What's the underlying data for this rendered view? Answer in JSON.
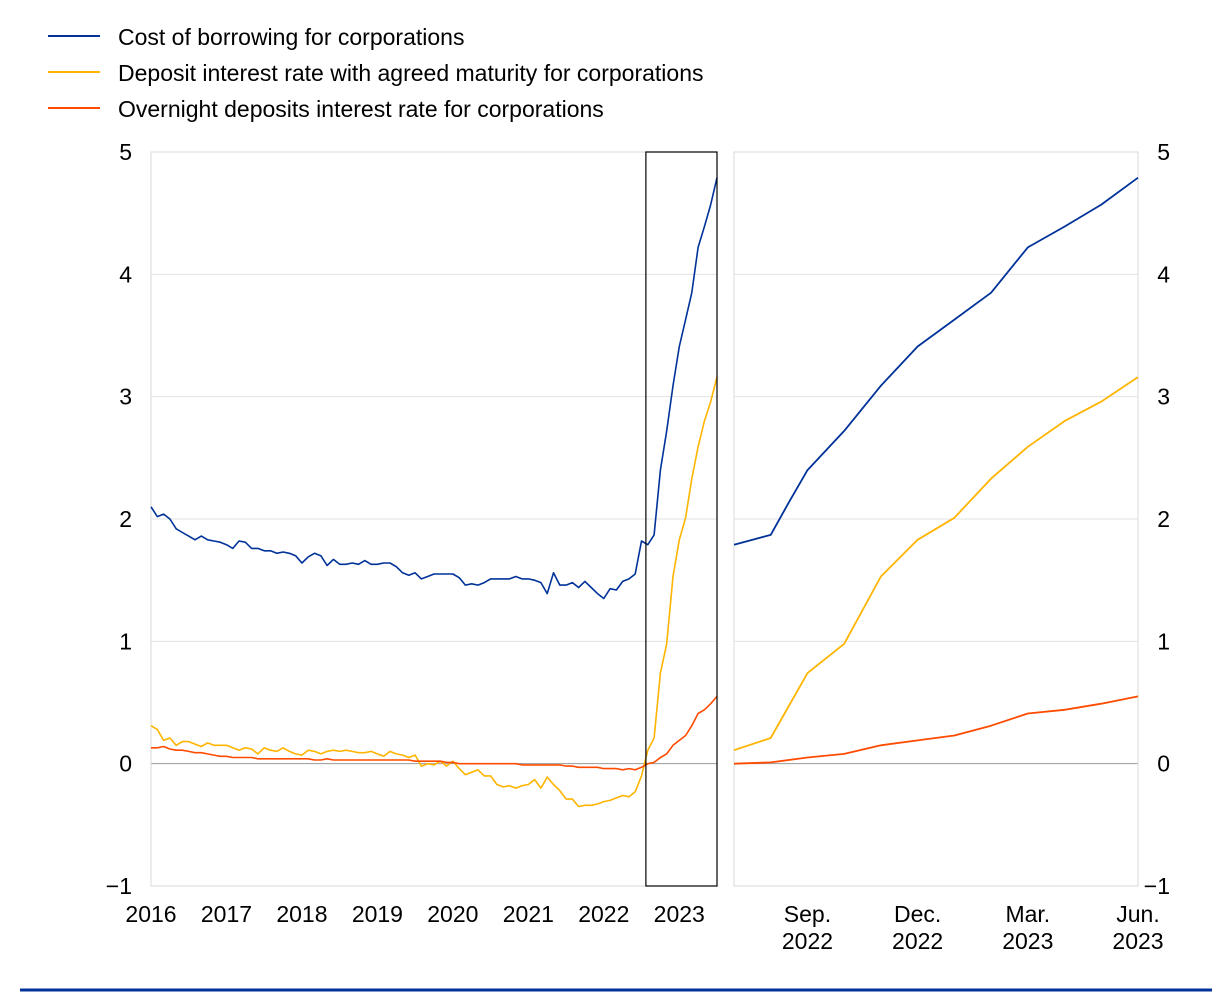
{
  "legend": [
    {
      "label": "Cost of borrowing for corporations",
      "color": "#003299"
    },
    {
      "label": "Deposit interest rate with agreed maturity for corporations",
      "color": "#FFB400"
    },
    {
      "label": "Overnight deposits interest rate for corporations",
      "color": "#FF4B00"
    }
  ],
  "bottom_rule_color": "#003299",
  "chart_data": [
    {
      "type": "line",
      "panel": "left",
      "x_tick_labels": [
        "2016",
        "2017",
        "2018",
        "2019",
        "2020",
        "2021",
        "2022",
        "2023"
      ],
      "ylim": [
        -1,
        5
      ],
      "y_ticks": [
        "−1",
        "0",
        "1",
        "2",
        "3",
        "4",
        "5"
      ],
      "grid": true,
      "legend_position": "top-left",
      "highlight_box": "Jul. 2022 – Jun. 2023",
      "x_start": "2016-01",
      "series": [
        {
          "name": "Cost of borrowing for corporations",
          "color": "#003299",
          "values": [
            2.1,
            2.02,
            2.04,
            2.0,
            1.92,
            1.89,
            1.86,
            1.83,
            1.86,
            1.83,
            1.82,
            1.81,
            1.79,
            1.76,
            1.82,
            1.81,
            1.76,
            1.76,
            1.74,
            1.74,
            1.72,
            1.73,
            1.72,
            1.7,
            1.64,
            1.69,
            1.72,
            1.7,
            1.62,
            1.67,
            1.63,
            1.63,
            1.64,
            1.63,
            1.66,
            1.63,
            1.63,
            1.64,
            1.64,
            1.61,
            1.56,
            1.54,
            1.56,
            1.51,
            1.53,
            1.55,
            1.55,
            1.55,
            1.55,
            1.52,
            1.46,
            1.47,
            1.46,
            1.48,
            1.51,
            1.51,
            1.51,
            1.51,
            1.53,
            1.51,
            1.51,
            1.5,
            1.48,
            1.39,
            1.56,
            1.46,
            1.46,
            1.48,
            1.44,
            1.49,
            1.44,
            1.39,
            1.35,
            1.43,
            1.42,
            1.49,
            1.51,
            1.55,
            1.82,
            1.79,
            1.87,
            2.4,
            2.72,
            3.09,
            3.41,
            3.63,
            3.85,
            4.22,
            4.39,
            4.57,
            4.79
          ]
        },
        {
          "name": "Deposit interest rate with agreed maturity for corporations",
          "color": "#FFB400",
          "values": [
            0.31,
            0.28,
            0.19,
            0.21,
            0.15,
            0.18,
            0.18,
            0.16,
            0.14,
            0.17,
            0.15,
            0.15,
            0.15,
            0.13,
            0.11,
            0.13,
            0.12,
            0.08,
            0.13,
            0.11,
            0.1,
            0.13,
            0.1,
            0.08,
            0.07,
            0.11,
            0.1,
            0.08,
            0.1,
            0.11,
            0.1,
            0.11,
            0.1,
            0.09,
            0.09,
            0.1,
            0.08,
            0.06,
            0.1,
            0.08,
            0.07,
            0.05,
            0.07,
            -0.02,
            0.0,
            -0.01,
            0.02,
            -0.02,
            0.02,
            -0.04,
            -0.09,
            -0.07,
            -0.05,
            -0.1,
            -0.1,
            -0.17,
            -0.19,
            -0.18,
            -0.2,
            -0.18,
            -0.17,
            -0.13,
            -0.2,
            -0.11,
            -0.17,
            -0.22,
            -0.29,
            -0.29,
            -0.35,
            -0.34,
            -0.34,
            -0.33,
            -0.31,
            -0.3,
            -0.28,
            -0.26,
            -0.27,
            -0.23,
            -0.1,
            0.11,
            0.21,
            0.74,
            0.98,
            1.53,
            1.83,
            2.01,
            2.33,
            2.59,
            2.8,
            2.96,
            3.16
          ]
        },
        {
          "name": "Overnight deposits interest rate for corporations",
          "color": "#FF4B00",
          "values": [
            0.13,
            0.13,
            0.14,
            0.12,
            0.11,
            0.11,
            0.1,
            0.09,
            0.09,
            0.08,
            0.07,
            0.06,
            0.06,
            0.05,
            0.05,
            0.05,
            0.05,
            0.04,
            0.04,
            0.04,
            0.04,
            0.04,
            0.04,
            0.04,
            0.04,
            0.04,
            0.03,
            0.03,
            0.04,
            0.03,
            0.03,
            0.03,
            0.03,
            0.03,
            0.03,
            0.03,
            0.03,
            0.03,
            0.03,
            0.03,
            0.03,
            0.03,
            0.02,
            0.02,
            0.02,
            0.02,
            0.02,
            0.01,
            0.01,
            0.0,
            0.0,
            0.0,
            0.0,
            0.0,
            0.0,
            0.0,
            0.0,
            0.0,
            0.0,
            -0.01,
            -0.01,
            -0.01,
            -0.01,
            -0.01,
            -0.01,
            -0.01,
            -0.02,
            -0.02,
            -0.03,
            -0.03,
            -0.03,
            -0.03,
            -0.04,
            -0.04,
            -0.04,
            -0.05,
            -0.04,
            -0.05,
            -0.03,
            0.0,
            0.01,
            0.05,
            0.08,
            0.15,
            0.19,
            0.23,
            0.31,
            0.41,
            0.44,
            0.49,
            0.55
          ]
        }
      ]
    },
    {
      "type": "line",
      "panel": "right",
      "x_tick_labels": [
        [
          "Sep.",
          "2022"
        ],
        [
          "Dec.",
          "2022"
        ],
        [
          "Mar.",
          "2023"
        ],
        [
          "Jun.",
          "2023"
        ]
      ],
      "x_tick_positions": [
        2,
        5,
        8,
        11
      ],
      "ylim": [
        -1,
        5
      ],
      "y_ticks": [
        "−1",
        "0",
        "1",
        "2",
        "3",
        "4",
        "5"
      ],
      "grid": true,
      "series": [
        {
          "name": "Cost of borrowing for corporations",
          "color": "#003299",
          "x": [
            0,
            1,
            1.5,
            2,
            3,
            4,
            5,
            6,
            7,
            8,
            9,
            10,
            11
          ],
          "values": [
            1.79,
            1.87,
            2.14,
            2.4,
            2.72,
            3.09,
            3.41,
            3.63,
            3.85,
            4.22,
            4.39,
            4.57,
            4.79
          ]
        },
        {
          "name": "Deposit interest rate with agreed maturity for corporations",
          "color": "#FFB400",
          "x": [
            0,
            1,
            2,
            3,
            4,
            5,
            6,
            6.5,
            7,
            8,
            9,
            10,
            11
          ],
          "values": [
            0.11,
            0.21,
            0.74,
            0.98,
            1.53,
            1.83,
            2.01,
            2.17,
            2.33,
            2.59,
            2.8,
            2.96,
            3.16
          ]
        },
        {
          "name": "Overnight deposits interest rate for corporations",
          "color": "#FF4B00",
          "x": [
            0,
            1,
            2,
            3,
            4,
            5,
            6,
            7,
            8,
            9,
            10,
            11
          ],
          "values": [
            0.0,
            0.01,
            0.05,
            0.08,
            0.15,
            0.19,
            0.23,
            0.31,
            0.41,
            0.44,
            0.49,
            0.55
          ]
        }
      ]
    }
  ]
}
